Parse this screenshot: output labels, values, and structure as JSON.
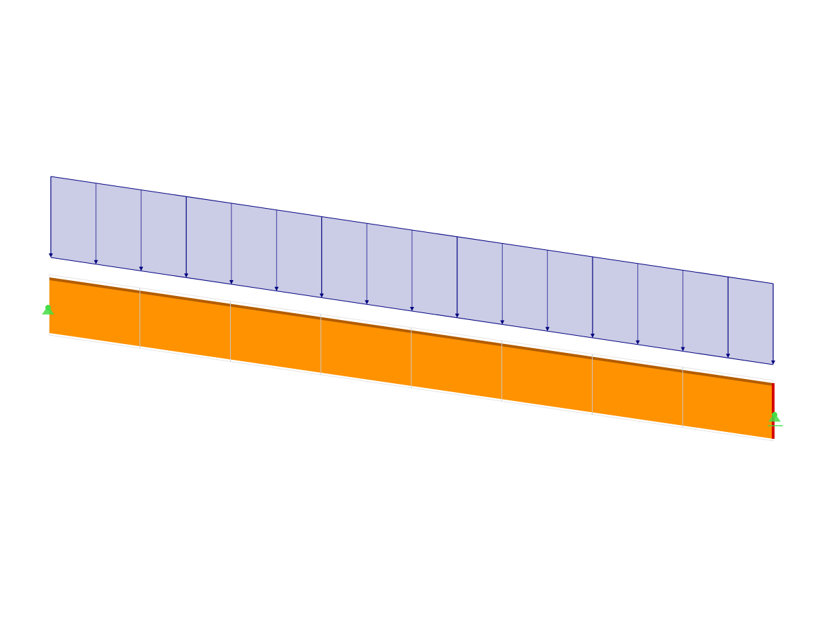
{
  "viewport": {
    "background": "#ffffff"
  },
  "load": {
    "type": "member-load-uniform",
    "fill_color": "#cbcce6",
    "line_color": "#00007f",
    "arrow_icon": "arrow-down-icon"
  },
  "member": {
    "fill_color": "#ff9200",
    "top_edge_color": "#a05000",
    "division_color": "#c8c8c8",
    "outline_color": "#c8c8c8",
    "end_release_color": "#d40000"
  },
  "supports": [
    {
      "icon": "hinged-support-icon",
      "color": "#44dd44"
    },
    {
      "icon": "hinged-support-icon",
      "color": "#44dd44"
    }
  ]
}
